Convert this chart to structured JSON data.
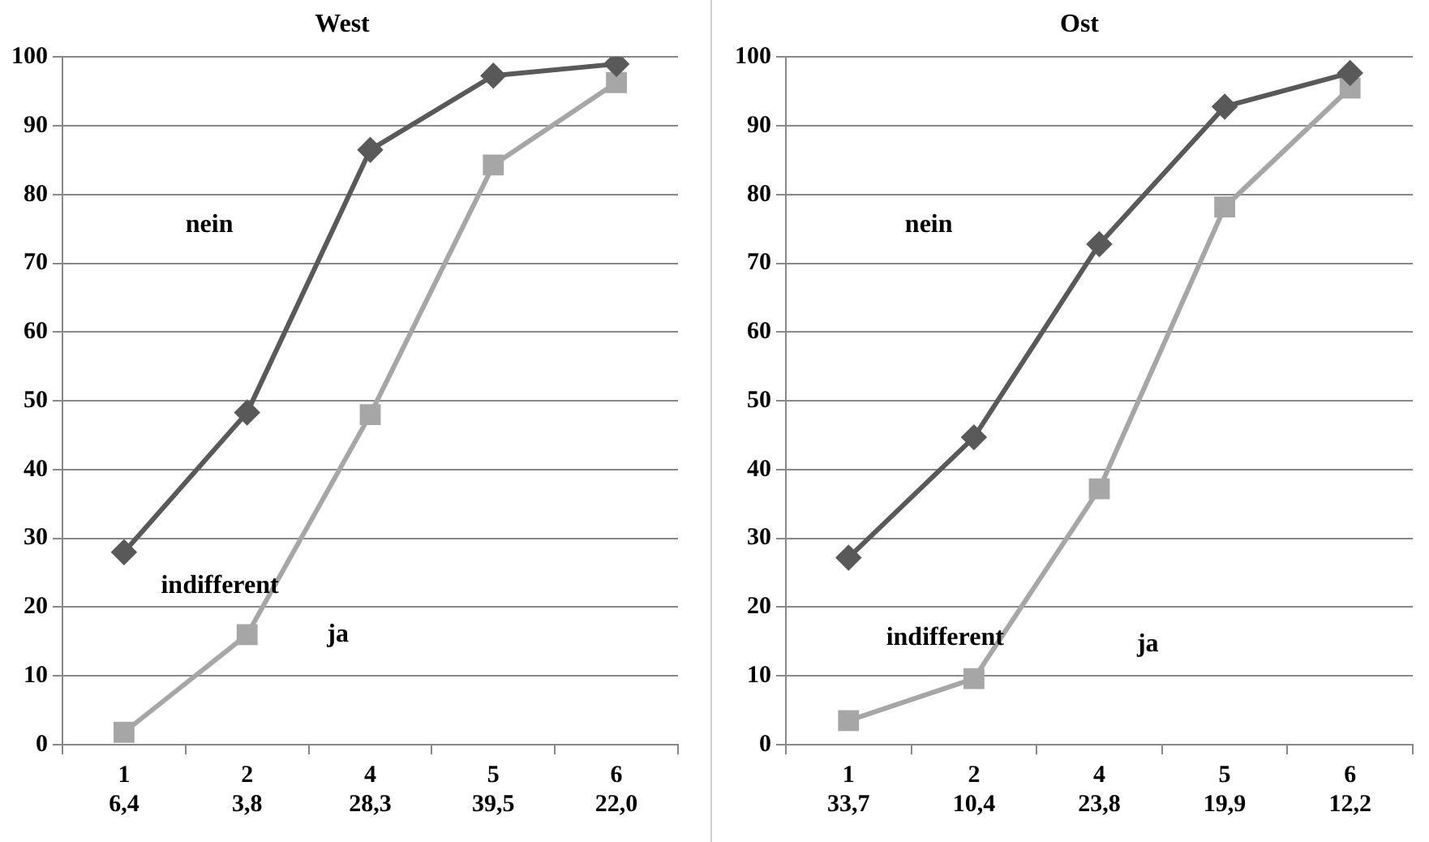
{
  "chart_data": [
    {
      "type": "line",
      "title": "West",
      "categories": [
        "1\n6,4",
        "2\n3,8",
        "4\n28,3",
        "5\n39,5",
        "6\n22,0"
      ],
      "series": [
        {
          "color": "#595959",
          "marker": "diamond",
          "values": [
            28,
            48.3,
            86.5,
            97.3,
            99
          ]
        },
        {
          "color": "#a6a6a6",
          "marker": "square",
          "values": [
            1.8,
            16,
            48,
            84.3,
            96.3
          ]
        }
      ],
      "ylim": [
        0,
        100
      ],
      "yticks": [
        0,
        10,
        20,
        30,
        40,
        50,
        60,
        70,
        80,
        90,
        100
      ],
      "grid": "y",
      "legend": false,
      "annotations": [
        "nein",
        "indifferent",
        "ja"
      ]
    },
    {
      "type": "line",
      "title": "Ost",
      "categories": [
        "1\n33,7",
        "2\n10,4",
        "4\n23,8",
        "5\n19,9",
        "6\n12,2"
      ],
      "series": [
        {
          "color": "#595959",
          "marker": "diamond",
          "values": [
            27.2,
            44.7,
            72.8,
            92.8,
            97.7
          ]
        },
        {
          "color": "#a6a6a6",
          "marker": "square",
          "values": [
            3.5,
            9.6,
            37.2,
            78.2,
            95.5
          ]
        }
      ],
      "ylim": [
        0,
        100
      ],
      "yticks": [
        0,
        10,
        20,
        30,
        40,
        50,
        60,
        70,
        80,
        90,
        100
      ],
      "grid": "y",
      "legend": false,
      "annotations": [
        "nein",
        "indifferent",
        "ja"
      ]
    }
  ]
}
